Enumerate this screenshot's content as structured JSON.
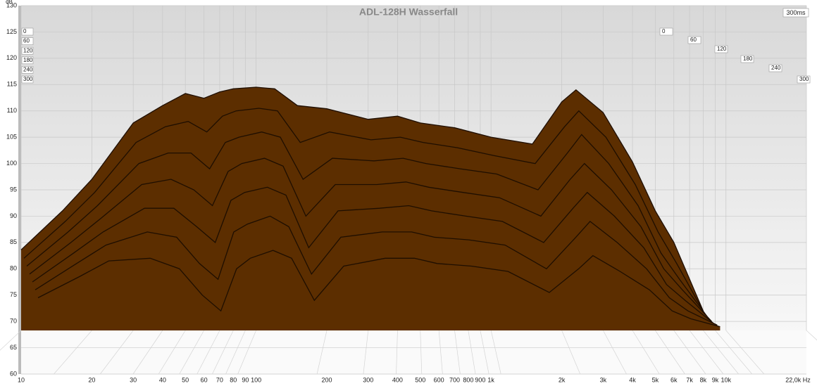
{
  "chart_data": {
    "type": "waterfall",
    "title": "ADL-128H Wasserfall",
    "y_label": "dB",
    "time_label": "300ms",
    "fill_color": "#5c2e00",
    "line_color": "#1e0e00",
    "grid": true,
    "log_x": true,
    "xlim": [
      10,
      22000
    ],
    "ylim": [
      60,
      130
    ],
    "yticks": [
      60,
      65,
      70,
      75,
      80,
      85,
      90,
      95,
      100,
      105,
      110,
      115,
      120,
      125,
      130
    ],
    "xticks": [
      10,
      20,
      30,
      40,
      50,
      60,
      70,
      80,
      90,
      100,
      200,
      300,
      400,
      500,
      600,
      700,
      800,
      900,
      {
        "value": 1000,
        "label": "1k"
      },
      {
        "value": 2000,
        "label": "2k"
      },
      {
        "value": 3000,
        "label": "3k"
      },
      {
        "value": 4000,
        "label": "4k"
      },
      {
        "value": 5000,
        "label": "5k"
      },
      {
        "value": 6000,
        "label": "6k"
      },
      {
        "value": 7000,
        "label": "7k"
      },
      {
        "value": 8000,
        "label": "8k"
      },
      {
        "value": 9000,
        "label": "9k"
      },
      {
        "value": 10000,
        "label": "10k"
      },
      {
        "value": 22000,
        "label": "22,0k Hz"
      }
    ],
    "zticks": [
      0,
      60,
      120,
      180,
      240,
      300
    ],
    "x": [
      10,
      15,
      20,
      30,
      40,
      50,
      60,
      70,
      80,
      100,
      120,
      150,
      200,
      300,
      400,
      500,
      700,
      1000,
      1500,
      2000,
      2300,
      3000,
      4000,
      5000,
      6000,
      8000
    ],
    "slices": [
      {
        "time": 0,
        "values": [
          83.6,
          91,
          97,
          107.7,
          111,
          113.3,
          112.4,
          113.6,
          114.2,
          114.5,
          114.2,
          111,
          110.4,
          108.4,
          109,
          107.7,
          106.8,
          105,
          103.7,
          111.7,
          114,
          109.7,
          100.3,
          91,
          85,
          72
        ]
      },
      {
        "time": 50,
        "values": [
          82,
          89,
          94.5,
          104,
          107,
          108,
          106,
          109,
          110,
          110.5,
          110,
          104,
          106,
          104.5,
          105,
          104,
          103,
          101.5,
          100,
          107,
          110,
          105,
          96,
          87,
          81,
          71
        ]
      },
      {
        "time": 100,
        "values": [
          80.5,
          87,
          92,
          100,
          102,
          102,
          99,
          104,
          105,
          106,
          105,
          97,
          101,
          100.5,
          101,
          100,
          99,
          98,
          95,
          102,
          105.5,
          100,
          92,
          83,
          78,
          70.5
        ]
      },
      {
        "time": 150,
        "values": [
          79,
          85,
          89.5,
          96,
          97,
          95,
          92,
          98.5,
          100,
          101,
          99.5,
          90,
          96,
          96,
          96.5,
          95.5,
          94.5,
          93.5,
          90,
          97,
          100,
          95,
          88,
          80,
          76,
          70
        ]
      },
      {
        "time": 200,
        "values": [
          77.5,
          83,
          87,
          91.5,
          91.5,
          88,
          85,
          93,
          94.5,
          95.5,
          94,
          84,
          91,
          91.5,
          92,
          91,
          90,
          89,
          85,
          91.5,
          94.5,
          90,
          84,
          77,
          74,
          69.5
        ]
      },
      {
        "time": 250,
        "values": [
          76,
          81,
          84.5,
          87,
          86,
          81,
          78,
          87,
          88.5,
          90,
          88,
          79,
          86,
          87,
          87,
          86,
          85.5,
          84.5,
          80,
          86,
          89,
          85,
          80,
          74.5,
          72,
          69.3
        ]
      },
      {
        "time": 300,
        "values": [
          74.5,
          78.5,
          81.5,
          82,
          80,
          75,
          72,
          80,
          82,
          83.5,
          82,
          74,
          80.5,
          82,
          82,
          81,
          80.5,
          79.5,
          75.5,
          80,
          82.5,
          79.5,
          76,
          72,
          70.5,
          69
        ]
      }
    ]
  }
}
